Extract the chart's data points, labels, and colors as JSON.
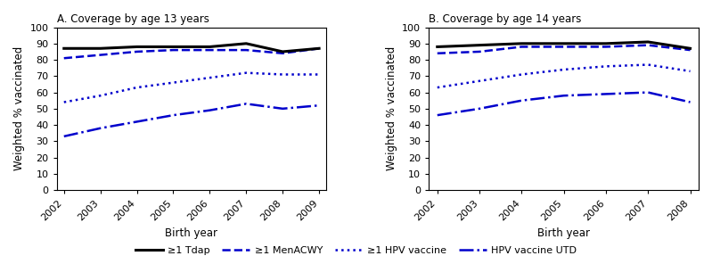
{
  "panel_A": {
    "title": "A. Coverage by age 13 years",
    "x": [
      2002,
      2003,
      2004,
      2005,
      2006,
      2007,
      2008,
      2009
    ],
    "tdap": [
      87,
      87,
      88,
      88,
      88,
      90,
      85,
      87
    ],
    "menacwy": [
      81,
      83,
      85,
      86,
      86,
      86,
      84,
      87
    ],
    "hpv": [
      54,
      58,
      63,
      66,
      69,
      72,
      71,
      71
    ],
    "hpv_utd": [
      33,
      38,
      42,
      46,
      49,
      53,
      50,
      52
    ]
  },
  "panel_B": {
    "title": "B. Coverage by age 14 years",
    "x": [
      2002,
      2003,
      2004,
      2005,
      2006,
      2007,
      2008
    ],
    "tdap": [
      88,
      89,
      90,
      90,
      90,
      91,
      87
    ],
    "menacwy": [
      84,
      85,
      88,
      88,
      88,
      89,
      86
    ],
    "hpv": [
      63,
      67,
      71,
      74,
      76,
      77,
      73
    ],
    "hpv_utd": [
      46,
      50,
      55,
      58,
      59,
      60,
      54
    ]
  },
  "colors": {
    "tdap": "#000000",
    "blue": "#0000cc"
  },
  "ylim": [
    0,
    100
  ],
  "yticks": [
    0,
    10,
    20,
    30,
    40,
    50,
    60,
    70,
    80,
    90,
    100
  ],
  "ylabel": "Weighted % vaccinated",
  "xlabel": "Birth year",
  "legend": {
    "tdap_label": "≥1 Tdap",
    "menacwy_label": "≥1 MenACWY",
    "hpv_label": "≥1 HPV vaccine",
    "hpv_utd_label": "HPV vaccine UTD"
  },
  "lw": 1.8
}
